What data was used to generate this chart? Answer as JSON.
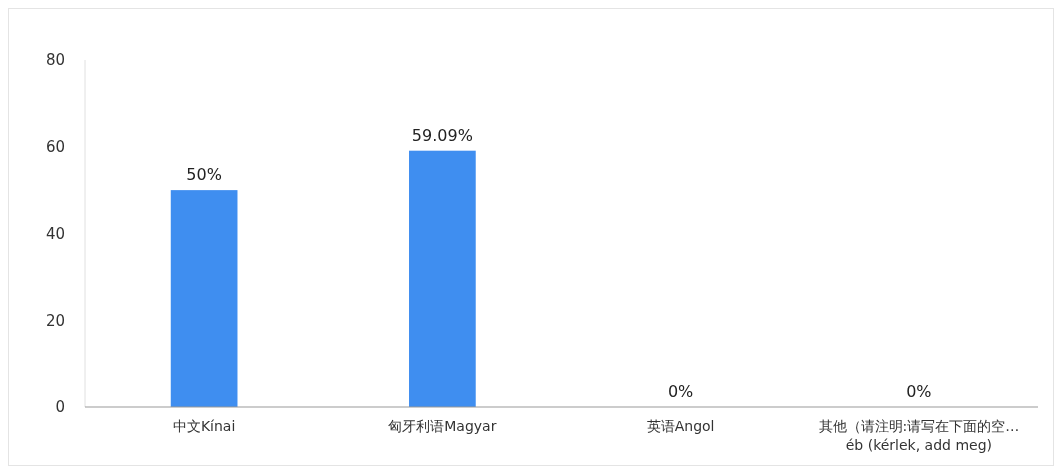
{
  "chart_data": {
    "type": "bar",
    "categories": [
      "中文Kínai",
      "匈牙利语Magyar",
      "英语Angol",
      "其他（请注明:请写在下面的空…\néb (kérlek, add meg)"
    ],
    "values": [
      50,
      59.09,
      0,
      0
    ],
    "value_labels": [
      "50%",
      "59.09%",
      "0%",
      "0%"
    ],
    "color": "#3f8ef0",
    "ylim": [
      0,
      80
    ],
    "yticks": [
      0,
      20,
      40,
      60,
      80
    ],
    "grid": false
  }
}
